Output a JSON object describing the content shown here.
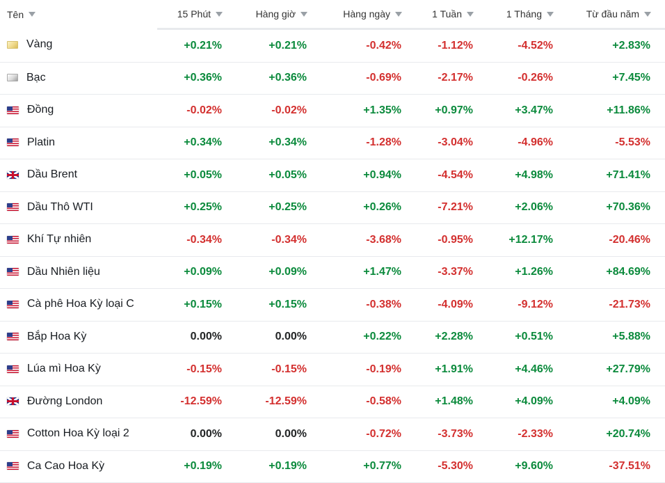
{
  "colors": {
    "positive": "#0b8a3c",
    "negative": "#d3302f",
    "neutral": "#232526"
  },
  "header": {
    "columns": [
      {
        "label": "Tên",
        "sort_icon": "sort-down-icon"
      },
      {
        "label": "15 Phút",
        "sort_icon": "sort-down-icon"
      },
      {
        "label": "Hàng giờ",
        "sort_icon": "sort-down-icon"
      },
      {
        "label": "Hàng ngày",
        "sort_icon": "sort-down-icon"
      },
      {
        "label": "1 Tuần",
        "sort_icon": "sort-down-icon"
      },
      {
        "label": "1 Tháng",
        "sort_icon": "sort-down-icon"
      },
      {
        "label": "Từ đầu năm",
        "sort_icon": "sort-down-icon"
      }
    ]
  },
  "rows": [
    {
      "name": "Vàng",
      "icon": "gold-swatch-icon",
      "m15": "+0.21%",
      "hourly": "+0.21%",
      "daily": "-0.42%",
      "week": "-1.12%",
      "month": "-4.52%",
      "ytd": "+2.83%"
    },
    {
      "name": "Bạc",
      "icon": "silver-swatch-icon",
      "m15": "+0.36%",
      "hourly": "+0.36%",
      "daily": "-0.69%",
      "week": "-2.17%",
      "month": "-0.26%",
      "ytd": "+7.45%"
    },
    {
      "name": "Đồng",
      "icon": "us-flag-icon",
      "m15": "-0.02%",
      "hourly": "-0.02%",
      "daily": "+1.35%",
      "week": "+0.97%",
      "month": "+3.47%",
      "ytd": "+11.86%"
    },
    {
      "name": "Platin",
      "icon": "us-flag-icon",
      "m15": "+0.34%",
      "hourly": "+0.34%",
      "daily": "-1.28%",
      "week": "-3.04%",
      "month": "-4.96%",
      "ytd": "-5.53%"
    },
    {
      "name": "Dầu Brent",
      "icon": "uk-flag-icon",
      "m15": "+0.05%",
      "hourly": "+0.05%",
      "daily": "+0.94%",
      "week": "-4.54%",
      "month": "+4.98%",
      "ytd": "+71.41%"
    },
    {
      "name": "Dầu Thô WTI",
      "icon": "us-flag-icon",
      "m15": "+0.25%",
      "hourly": "+0.25%",
      "daily": "+0.26%",
      "week": "-7.21%",
      "month": "+2.06%",
      "ytd": "+70.36%"
    },
    {
      "name": "Khí Tự nhiên",
      "icon": "us-flag-icon",
      "m15": "-0.34%",
      "hourly": "-0.34%",
      "daily": "-3.68%",
      "week": "-0.95%",
      "month": "+12.17%",
      "ytd": "-20.46%"
    },
    {
      "name": "Dầu Nhiên liệu",
      "icon": "us-flag-icon",
      "m15": "+0.09%",
      "hourly": "+0.09%",
      "daily": "+1.47%",
      "week": "-3.37%",
      "month": "+1.26%",
      "ytd": "+84.69%"
    },
    {
      "name": "Cà phê Hoa Kỳ loại C",
      "icon": "us-flag-icon",
      "m15": "+0.15%",
      "hourly": "+0.15%",
      "daily": "-0.38%",
      "week": "-4.09%",
      "month": "-9.12%",
      "ytd": "-21.73%"
    },
    {
      "name": "Bắp Hoa Kỳ",
      "icon": "us-flag-icon",
      "m15": "0.00%",
      "hourly": "0.00%",
      "daily": "+0.22%",
      "week": "+2.28%",
      "month": "+0.51%",
      "ytd": "+5.88%"
    },
    {
      "name": "Lúa mì Hoa Kỳ",
      "icon": "us-flag-icon",
      "m15": "-0.15%",
      "hourly": "-0.15%",
      "daily": "-0.19%",
      "week": "+1.91%",
      "month": "+4.46%",
      "ytd": "+27.79%"
    },
    {
      "name": "Đường London",
      "icon": "uk-flag-icon",
      "m15": "-12.59%",
      "hourly": "-12.59%",
      "daily": "-0.58%",
      "week": "+1.48%",
      "month": "+4.09%",
      "ytd": "+4.09%"
    },
    {
      "name": "Cotton Hoa Kỳ loại 2",
      "icon": "us-flag-icon",
      "m15": "0.00%",
      "hourly": "0.00%",
      "daily": "-0.72%",
      "week": "-3.73%",
      "month": "-2.33%",
      "ytd": "+20.74%"
    },
    {
      "name": "Ca Cao Hoa Kỳ",
      "icon": "us-flag-icon",
      "m15": "+0.19%",
      "hourly": "+0.19%",
      "daily": "+0.77%",
      "week": "-5.30%",
      "month": "+9.60%",
      "ytd": "-37.51%"
    }
  ]
}
